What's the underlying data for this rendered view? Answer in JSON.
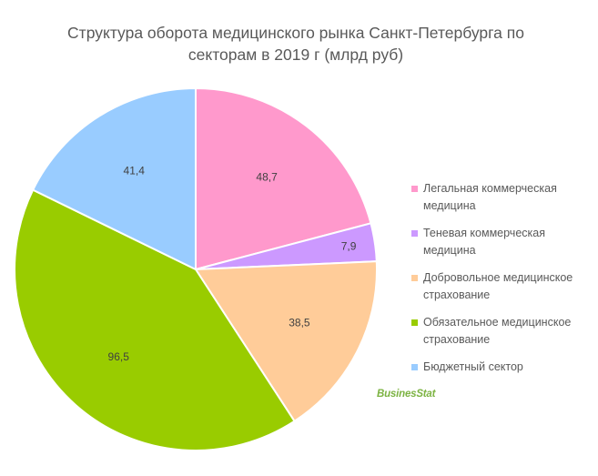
{
  "chart_data": {
    "type": "pie",
    "title": "Структура оборота медицинского рынка Санкт-Петербурга по секторам в 2019 г (млрд руб)",
    "title_lines": [
      "Структура оборота медицинского рынка Санкт-Петербурга по",
      "секторам в 2019 г (млрд руб)"
    ],
    "slices": [
      {
        "label": "Легальная коммерческая медицина",
        "legend_lines": [
          "Легальная коммерческая",
          "медицина"
        ],
        "value": 48.7,
        "value_text": "48,7",
        "color": "#ff99cc"
      },
      {
        "label": "Теневая коммерческая медицина",
        "legend_lines": [
          "Теневая коммерческая",
          "медицина"
        ],
        "value": 7.9,
        "value_text": "7,9",
        "color": "#cc99ff"
      },
      {
        "label": "Добровольное медицинское страхование",
        "legend_lines": [
          "Добровольное медицинское",
          "страхование"
        ],
        "value": 38.5,
        "value_text": "38,5",
        "color": "#ffcc99"
      },
      {
        "label": "Обязательное медицинское страхование",
        "legend_lines": [
          "Обязательное медицинское",
          "страхование"
        ],
        "value": 96.5,
        "value_text": "96,5",
        "color": "#99cc00"
      },
      {
        "label": "Бюджетный сектор",
        "legend_lines": [
          "Бюджетный сектор"
        ],
        "value": 41.4,
        "value_text": "41,4",
        "color": "#99ccff"
      }
    ],
    "legend_position": "right"
  },
  "branding": {
    "logo_text": "BusinesStat"
  }
}
